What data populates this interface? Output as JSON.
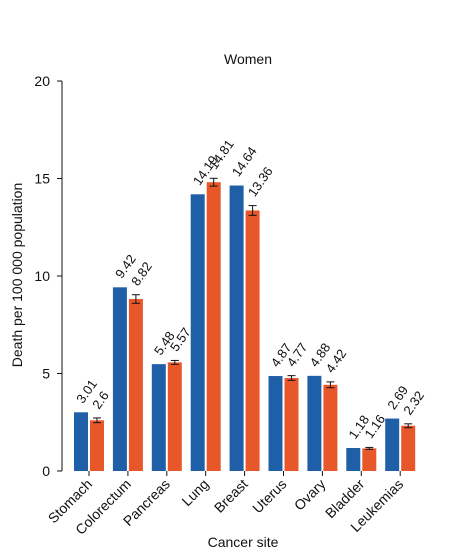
{
  "chart_data": {
    "type": "bar",
    "title": "Women",
    "xlabel": "Cancer site",
    "ylabel": "Death per 100 000 population",
    "ylim": [
      0,
      20
    ],
    "yticks": [
      0,
      5,
      10,
      15,
      20
    ],
    "categories": [
      "Stomach",
      "Colorectum",
      "Pancreas",
      "Lung",
      "Breast",
      "Uterus",
      "Ovary",
      "Bladder",
      "Leukemias"
    ],
    "series": [
      {
        "values": [
          3.01,
          9.42,
          5.48,
          14.19,
          14.64,
          4.87,
          4.88,
          1.18,
          2.69
        ],
        "color": "#1f5fa8",
        "labels": [
          "3.01",
          "9.42",
          "5.48",
          "14.19",
          "14.64",
          "4.87",
          "4.88",
          "1.18",
          "2.69"
        ]
      },
      {
        "values": [
          2.6,
          8.82,
          5.57,
          14.81,
          13.36,
          4.77,
          4.42,
          1.16,
          2.32
        ],
        "color": "#e8572a",
        "labels": [
          "2.6",
          "8.82",
          "5.57",
          "14.81",
          "13.36",
          "4.77",
          "4.42",
          "1.16",
          "2.32"
        ],
        "error": [
          0.12,
          0.22,
          0.1,
          0.2,
          0.25,
          0.12,
          0.15,
          0.05,
          0.1
        ]
      }
    ],
    "grid": false,
    "legend": "none"
  }
}
